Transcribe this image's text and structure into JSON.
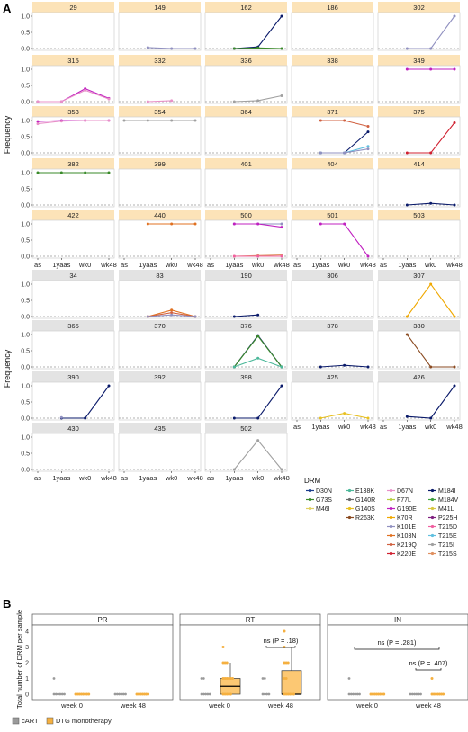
{
  "panel_labels": {
    "a": "A",
    "b": "B"
  },
  "y_label_a": "Frequency",
  "x_ticks_a": [
    "as",
    "1yaas",
    "wk0",
    "wk48"
  ],
  "y_ticks_a": [
    "0.0",
    "0.5",
    "1.0"
  ],
  "drm_legend": {
    "title": "DRM",
    "items": [
      {
        "key": "D30N",
        "label": "D30N",
        "color": "#1a3c8c"
      },
      {
        "key": "G73S",
        "label": "G73S",
        "color": "#3a8a2a"
      },
      {
        "key": "M46I",
        "label": "M46I",
        "color": "#e0d060"
      },
      {
        "key": "E138K",
        "label": "E138K",
        "color": "#4cb89a"
      },
      {
        "key": "G140R",
        "label": "G140R",
        "color": "#6a6a6a"
      },
      {
        "key": "G140S",
        "label": "G140S",
        "color": "#e8c020"
      },
      {
        "key": "R263K",
        "label": "R263K",
        "color": "#8a4a20"
      },
      {
        "key": "D67N",
        "label": "D67N",
        "color": "#e890c8"
      },
      {
        "key": "F77L",
        "label": "F77L",
        "color": "#b8d040"
      },
      {
        "key": "G190E",
        "label": "G190E",
        "color": "#c020c0"
      },
      {
        "key": "K70R",
        "label": "K70R",
        "color": "#f0a800"
      },
      {
        "key": "K101E",
        "label": "K101E",
        "color": "#9090c0"
      },
      {
        "key": "K103N",
        "label": "K103N",
        "color": "#e07020"
      },
      {
        "key": "K219Q",
        "label": "K219Q",
        "color": "#d06040"
      },
      {
        "key": "K220E",
        "label": "K220E",
        "color": "#d02030"
      },
      {
        "key": "M184I",
        "label": "M184I",
        "color": "#0a1a6a"
      },
      {
        "key": "M184V",
        "label": "M184V",
        "color": "#40a040"
      },
      {
        "key": "M41L",
        "label": "M41L",
        "color": "#d8c840"
      },
      {
        "key": "P225H",
        "label": "P225H",
        "color": "#802080"
      },
      {
        "key": "T215D",
        "label": "T215D",
        "color": "#f060a0"
      },
      {
        "key": "T215E",
        "label": "T215E",
        "color": "#60c0e0"
      },
      {
        "key": "T215I",
        "label": "T215I",
        "color": "#a0a0a0"
      },
      {
        "key": "T215S",
        "label": "T215S",
        "color": "#e09060"
      }
    ]
  },
  "b": {
    "y_label": "Total number of DRM per sample",
    "y_ticks": [
      "0",
      "1",
      "2",
      "3",
      "4"
    ],
    "groups": [
      "week 0",
      "week 48"
    ],
    "legend": [
      {
        "label": "cART",
        "color": "#9a9a9a"
      },
      {
        "label": "DTG monotherapy",
        "color": "#f5b040"
      }
    ]
  },
  "chart_data": [
    {
      "type": "line",
      "title": "A",
      "x": [
        "as",
        "1yaas",
        "wk0",
        "wk48"
      ],
      "ylabel": "Frequency",
      "ylim": [
        0,
        1
      ],
      "panels": [
        {
          "id": "29",
          "group": "dtg",
          "series": []
        },
        {
          "id": "149",
          "group": "dtg",
          "series": [
            {
              "name": "K101E",
              "values": [
                null,
                0.03,
                0.0,
                0.0
              ]
            }
          ]
        },
        {
          "id": "162",
          "group": "dtg",
          "series": [
            {
              "name": "M184I",
              "values": [
                null,
                0.0,
                0.05,
                1.0
              ]
            },
            {
              "name": "G73S",
              "values": [
                null,
                0.0,
                0.02,
                0.0
              ]
            }
          ]
        },
        {
          "id": "186",
          "group": "dtg",
          "series": []
        },
        {
          "id": "302",
          "group": "dtg",
          "series": [
            {
              "name": "K101E",
              "values": [
                null,
                0.0,
                0.0,
                1.0
              ]
            }
          ]
        },
        {
          "id": "315",
          "group": "dtg",
          "series": [
            {
              "name": "G190E",
              "values": [
                0.0,
                0.0,
                0.4,
                0.1
              ]
            },
            {
              "name": "D67N",
              "values": [
                0.0,
                0.0,
                0.35,
                0.08
              ]
            }
          ]
        },
        {
          "id": "332",
          "group": "dtg",
          "series": [
            {
              "name": "D67N",
              "values": [
                null,
                0.0,
                0.03,
                null
              ]
            }
          ]
        },
        {
          "id": "336",
          "group": "dtg",
          "series": [
            {
              "name": "T215I",
              "values": [
                null,
                0.0,
                0.03,
                0.18
              ]
            }
          ]
        },
        {
          "id": "338",
          "group": "dtg",
          "series": []
        },
        {
          "id": "349",
          "group": "dtg",
          "series": [
            {
              "name": "G190E",
              "values": [
                null,
                1.0,
                1.0,
                1.0
              ]
            }
          ]
        },
        {
          "id": "353",
          "group": "dtg",
          "series": [
            {
              "name": "G190E",
              "values": [
                0.97,
                1.0,
                1.0,
                1.0
              ]
            },
            {
              "name": "D67N",
              "values": [
                0.9,
                0.98,
                1.0,
                1.0
              ]
            }
          ]
        },
        {
          "id": "354",
          "group": "dtg",
          "series": [
            {
              "name": "T215I",
              "values": [
                1.0,
                1.0,
                1.0,
                1.0
              ]
            }
          ]
        },
        {
          "id": "364",
          "group": "dtg",
          "series": []
        },
        {
          "id": "371",
          "group": "dtg",
          "series": [
            {
              "name": "K219Q",
              "values": [
                null,
                1.0,
                1.0,
                0.82
              ]
            },
            {
              "name": "M184I",
              "values": [
                null,
                0.0,
                0.0,
                0.65
              ]
            },
            {
              "name": "T215E",
              "values": [
                null,
                0.0,
                0.0,
                0.2
              ]
            },
            {
              "name": "K101E",
              "values": [
                null,
                0.0,
                0.0,
                0.12
              ]
            }
          ]
        },
        {
          "id": "375",
          "group": "dtg",
          "series": [
            {
              "name": "K220E",
              "values": [
                null,
                0.0,
                0.0,
                0.93
              ]
            }
          ]
        },
        {
          "id": "382",
          "group": "dtg",
          "series": [
            {
              "name": "G73S",
              "values": [
                1.0,
                1.0,
                1.0,
                1.0
              ]
            }
          ]
        },
        {
          "id": "399",
          "group": "dtg",
          "series": []
        },
        {
          "id": "401",
          "group": "dtg",
          "series": []
        },
        {
          "id": "404",
          "group": "dtg",
          "series": []
        },
        {
          "id": "414",
          "group": "dtg",
          "series": [
            {
              "name": "M184I",
              "values": [
                null,
                0.0,
                0.05,
                0.0
              ]
            }
          ]
        },
        {
          "id": "422",
          "group": "dtg",
          "series": []
        },
        {
          "id": "440",
          "group": "dtg",
          "series": [
            {
              "name": "K103N",
              "values": [
                null,
                1.0,
                1.0,
                1.0
              ]
            }
          ]
        },
        {
          "id": "500",
          "group": "dtg",
          "series": [
            {
              "name": "K101E",
              "values": [
                null,
                1.0,
                1.0,
                1.0
              ]
            },
            {
              "name": "G190E",
              "values": [
                null,
                1.0,
                1.0,
                0.9
              ]
            },
            {
              "name": "T215S",
              "values": [
                null,
                0.0,
                0.02,
                0.04
              ]
            },
            {
              "name": "T215D",
              "values": [
                null,
                0.0,
                0.0,
                0.0
              ]
            }
          ]
        },
        {
          "id": "501",
          "group": "dtg",
          "series": [
            {
              "name": "G190E",
              "values": [
                null,
                1.0,
                1.0,
                0.0
              ]
            }
          ]
        },
        {
          "id": "503",
          "group": "dtg",
          "series": []
        },
        {
          "id": "34",
          "group": "cart",
          "series": []
        },
        {
          "id": "83",
          "group": "cart",
          "series": [
            {
              "name": "K103N",
              "values": [
                null,
                0.0,
                0.2,
                0.0
              ]
            },
            {
              "name": "K219Q",
              "values": [
                null,
                0.0,
                0.12,
                0.0
              ]
            },
            {
              "name": "K101E",
              "values": [
                null,
                0.0,
                0.05,
                0.0
              ]
            }
          ]
        },
        {
          "id": "190",
          "group": "cart",
          "series": [
            {
              "name": "M184I",
              "values": [
                null,
                0.0,
                0.05,
                null
              ]
            }
          ]
        },
        {
          "id": "306",
          "group": "cart",
          "series": []
        },
        {
          "id": "307",
          "group": "cart",
          "series": [
            {
              "name": "K70R",
              "values": [
                null,
                0.0,
                1.0,
                0.0
              ]
            }
          ]
        },
        {
          "id": "365",
          "group": "cart",
          "series": []
        },
        {
          "id": "370",
          "group": "cart",
          "series": []
        },
        {
          "id": "376",
          "group": "cart",
          "series": [
            {
              "name": "M184I",
              "values": [
                null,
                0.0,
                0.97,
                0.0
              ]
            },
            {
              "name": "G73S",
              "values": [
                null,
                0.0,
                0.95,
                0.0
              ]
            },
            {
              "name": "E138K",
              "values": [
                null,
                0.0,
                0.27,
                0.0
              ]
            }
          ]
        },
        {
          "id": "378",
          "group": "cart",
          "series": [
            {
              "name": "M184I",
              "values": [
                null,
                0.0,
                0.05,
                0.0
              ]
            }
          ]
        },
        {
          "id": "380",
          "group": "cart",
          "series": [
            {
              "name": "R263K",
              "values": [
                null,
                1.0,
                0.0,
                0.0
              ]
            }
          ]
        },
        {
          "id": "390",
          "group": "cart",
          "series": [
            {
              "name": "M184I",
              "values": [
                null,
                0.0,
                0.0,
                1.0
              ]
            },
            {
              "name": "K101E",
              "values": [
                null,
                0.02,
                null,
                null
              ]
            }
          ]
        },
        {
          "id": "392",
          "group": "cart",
          "series": []
        },
        {
          "id": "398",
          "group": "cart",
          "series": [
            {
              "name": "M184I",
              "values": [
                null,
                0.0,
                0.0,
                1.0
              ]
            }
          ]
        },
        {
          "id": "425",
          "group": "cart",
          "series": [
            {
              "name": "G140S",
              "values": [
                null,
                0.0,
                0.15,
                0.0
              ]
            }
          ]
        },
        {
          "id": "426",
          "group": "cart",
          "series": [
            {
              "name": "M184I",
              "values": [
                null,
                0.05,
                0.0,
                1.0
              ]
            }
          ]
        },
        {
          "id": "430",
          "group": "cart",
          "series": []
        },
        {
          "id": "435",
          "group": "cart",
          "series": []
        },
        {
          "id": "502",
          "group": "cart",
          "series": [
            {
              "name": "T215I",
              "values": [
                null,
                0.0,
                0.9,
                0.0
              ]
            }
          ]
        }
      ]
    },
    {
      "type": "box",
      "title": "B",
      "ylabel": "Total number of DRM per sample",
      "ylim": [
        0,
        4
      ],
      "facets": [
        {
          "name": "PR",
          "groups": [
            {
              "name": "week 0",
              "cART": [
                0,
                0,
                0,
                0,
                0,
                0,
                1
              ],
              "DTG monotherapy": [
                0,
                0,
                0,
                0,
                0,
                0,
                0,
                0
              ]
            },
            {
              "name": "week 48",
              "cART": [
                0,
                0,
                0,
                0,
                0,
                0
              ],
              "DTG monotherapy": [
                0,
                0,
                0,
                0,
                0,
                0,
                0
              ]
            }
          ]
        },
        {
          "name": "RT",
          "groups": [
            {
              "name": "week 0",
              "cART": [
                0,
                0,
                0,
                0,
                0,
                1,
                1
              ],
              "DTG monotherapy": [
                0,
                0,
                0,
                0,
                0,
                1,
                1,
                1,
                1,
                1,
                1,
                2,
                2,
                2,
                3
              ],
              "box": {
                "q1": 0,
                "median": 0.5,
                "q3": 1,
                "whisker_low": 0,
                "whisker_high": 2
              }
            },
            {
              "name": "week 48",
              "cART": [
                0,
                0,
                0,
                0,
                1,
                1
              ],
              "DTG monotherapy": [
                0,
                0,
                0,
                0,
                0,
                0,
                1,
                1,
                2,
                2,
                2,
                3,
                4
              ],
              "box": {
                "q1": 0,
                "median": 0,
                "q3": 1.5,
                "whisker_low": 0,
                "whisker_high": 3
              }
            }
          ],
          "annotations": [
            {
              "text": "ns (P = .18)"
            }
          ]
        },
        {
          "name": "IN",
          "groups": [
            {
              "name": "week 0",
              "cART": [
                0,
                0,
                0,
                0,
                0,
                0,
                1
              ],
              "DTG monotherapy": [
                0,
                0,
                0,
                0,
                0,
                0,
                0,
                0
              ]
            },
            {
              "name": "week 48",
              "cART": [
                0,
                0,
                0,
                0,
                0,
                0
              ],
              "DTG monotherapy": [
                0,
                0,
                0,
                0,
                0,
                0,
                0,
                1
              ]
            }
          ],
          "annotations": [
            {
              "text": "ns (P = .281)"
            },
            {
              "text": "ns (P = .407)"
            }
          ]
        }
      ]
    }
  ]
}
